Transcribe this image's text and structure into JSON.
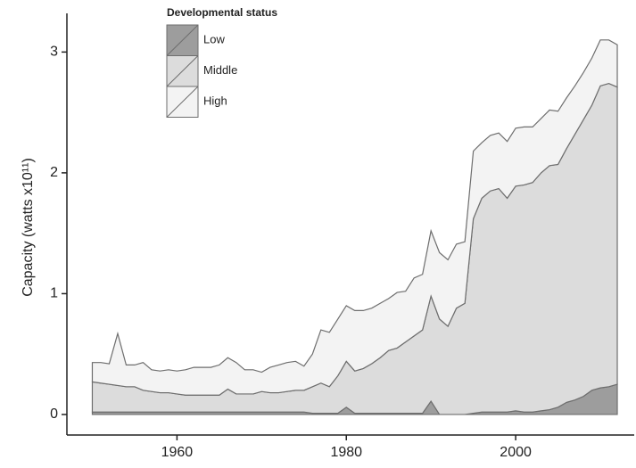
{
  "chart_data": {
    "type": "stacked-area",
    "y_label": "Capacity (watts x10¹¹)",
    "legend_title": "Developmental status",
    "x": [
      1950,
      1951,
      1952,
      1953,
      1954,
      1955,
      1956,
      1957,
      1958,
      1959,
      1960,
      1961,
      1962,
      1963,
      1964,
      1965,
      1966,
      1967,
      1968,
      1969,
      1970,
      1971,
      1972,
      1973,
      1974,
      1975,
      1976,
      1977,
      1978,
      1979,
      1980,
      1981,
      1982,
      1983,
      1984,
      1985,
      1986,
      1987,
      1988,
      1989,
      1990,
      1991,
      1992,
      1993,
      1994,
      1995,
      1996,
      1997,
      1998,
      1999,
      2000,
      2001,
      2002,
      2003,
      2004,
      2005,
      2006,
      2007,
      2008,
      2009,
      2010,
      2011,
      2012
    ],
    "series": [
      {
        "name": "Low",
        "color": "#9d9d9d",
        "values": [
          0.02,
          0.02,
          0.02,
          0.02,
          0.02,
          0.02,
          0.02,
          0.02,
          0.02,
          0.02,
          0.02,
          0.02,
          0.02,
          0.02,
          0.02,
          0.02,
          0.02,
          0.02,
          0.02,
          0.02,
          0.02,
          0.02,
          0.02,
          0.02,
          0.02,
          0.02,
          0.01,
          0.01,
          0.01,
          0.01,
          0.06,
          0.01,
          0.01,
          0.01,
          0.01,
          0.01,
          0.01,
          0.01,
          0.01,
          0.01,
          0.11,
          0,
          0,
          0,
          0,
          0.01,
          0.02,
          0.02,
          0.02,
          0.02,
          0.03,
          0.02,
          0.02,
          0.03,
          0.04,
          0.06,
          0.1,
          0.12,
          0.15,
          0.2,
          0.22,
          0.23,
          0.25
        ]
      },
      {
        "name": "Middle",
        "color": "#dcdcdc",
        "values": [
          0.25,
          0.24,
          0.23,
          0.22,
          0.21,
          0.21,
          0.18,
          0.17,
          0.16,
          0.16,
          0.15,
          0.14,
          0.14,
          0.14,
          0.14,
          0.14,
          0.19,
          0.15,
          0.15,
          0.15,
          0.17,
          0.16,
          0.16,
          0.17,
          0.18,
          0.18,
          0.22,
          0.25,
          0.22,
          0.31,
          0.38,
          0.35,
          0.37,
          0.41,
          0.46,
          0.52,
          0.54,
          0.59,
          0.64,
          0.69,
          0.87,
          0.79,
          0.73,
          0.88,
          0.92,
          1.61,
          1.77,
          1.83,
          1.85,
          1.77,
          1.86,
          1.88,
          1.9,
          1.97,
          2.02,
          2.01,
          2.1,
          2.2,
          2.29,
          2.36,
          2.5,
          2.51,
          2.46
        ]
      },
      {
        "name": "High",
        "color": "#f3f3f3",
        "values": [
          0.16,
          0.17,
          0.17,
          0.43,
          0.18,
          0.18,
          0.23,
          0.18,
          0.18,
          0.19,
          0.19,
          0.21,
          0.23,
          0.23,
          0.23,
          0.25,
          0.26,
          0.26,
          0.2,
          0.2,
          0.16,
          0.21,
          0.23,
          0.24,
          0.24,
          0.2,
          0.27,
          0.44,
          0.45,
          0.47,
          0.46,
          0.5,
          0.48,
          0.46,
          0.45,
          0.43,
          0.46,
          0.42,
          0.48,
          0.46,
          0.54,
          0.55,
          0.55,
          0.53,
          0.51,
          0.56,
          0.46,
          0.46,
          0.46,
          0.47,
          0.48,
          0.48,
          0.46,
          0.45,
          0.46,
          0.44,
          0.42,
          0.4,
          0.39,
          0.39,
          0.38,
          0.36,
          0.35
        ]
      }
    ],
    "xlim": [
      1947,
      2014
    ],
    "xticks": [
      1960,
      1980,
      2000
    ],
    "ylim": [
      -0.17,
      3.32
    ],
    "yticks": [
      0,
      1,
      2,
      3
    ],
    "edge_color": "#6e6e6e"
  }
}
